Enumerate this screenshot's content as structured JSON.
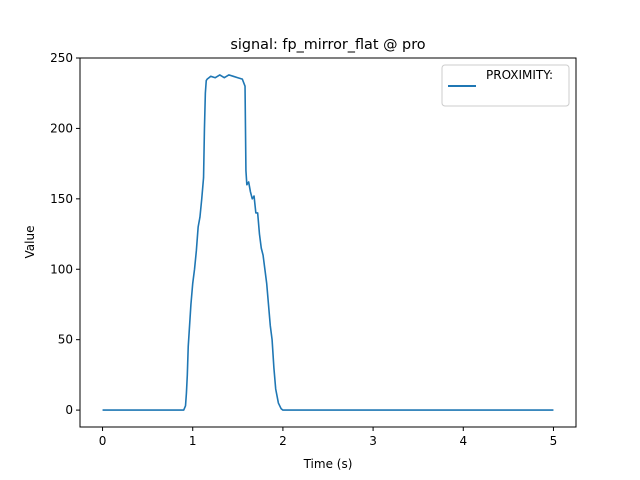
{
  "chart_data": {
    "type": "line",
    "title": "signal: fp_mirror_flat @ pro",
    "xlabel": "Time (s)",
    "ylabel": "Value",
    "xlim": [
      -0.25,
      5.25
    ],
    "ylim": [
      -12,
      250
    ],
    "xticks": [
      0,
      1,
      2,
      3,
      4,
      5
    ],
    "yticks": [
      0,
      50,
      100,
      150,
      200,
      250
    ],
    "grid": false,
    "legend": {
      "placement": "top-right",
      "entries": [
        "PROXIMITY:"
      ]
    },
    "series": [
      {
        "name": "PROXIMITY:",
        "color": "#1f77b4",
        "x": [
          0,
          0.9,
          0.92,
          0.93,
          0.94,
          0.95,
          0.96,
          0.97,
          0.98,
          1.0,
          1.02,
          1.04,
          1.06,
          1.08,
          1.1,
          1.12,
          1.13,
          1.14,
          1.15,
          1.16,
          1.18,
          1.2,
          1.25,
          1.3,
          1.35,
          1.4,
          1.45,
          1.5,
          1.55,
          1.58,
          1.59,
          1.6,
          1.62,
          1.64,
          1.66,
          1.68,
          1.7,
          1.72,
          1.74,
          1.76,
          1.78,
          1.8,
          1.82,
          1.84,
          1.86,
          1.88,
          1.9,
          1.92,
          1.95,
          1.98,
          2.0,
          5.0
        ],
        "y": [
          0,
          0,
          3,
          12,
          25,
          45,
          55,
          65,
          75,
          90,
          100,
          113,
          130,
          137,
          150,
          165,
          200,
          225,
          234,
          235,
          236,
          237,
          236,
          238,
          236,
          238,
          237,
          236,
          235,
          230,
          170,
          160,
          162,
          155,
          150,
          152,
          140,
          140,
          125,
          115,
          110,
          100,
          90,
          75,
          60,
          50,
          30,
          15,
          5,
          1,
          0,
          0
        ]
      }
    ]
  }
}
